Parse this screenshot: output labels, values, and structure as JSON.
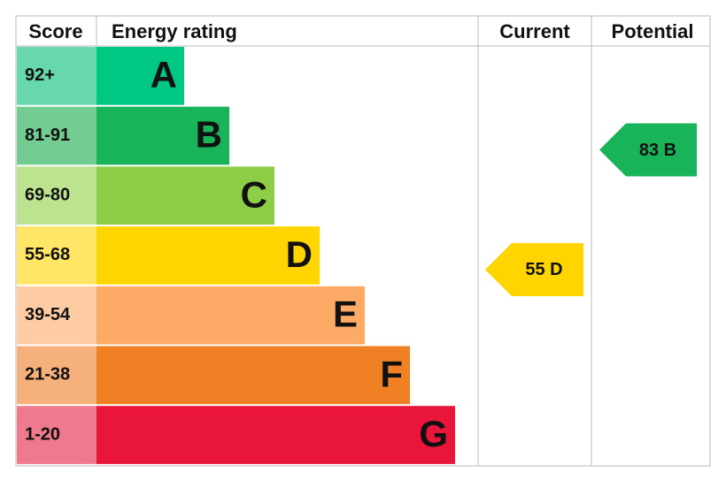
{
  "header": {
    "score": "Score",
    "energy_rating": "Energy rating",
    "current": "Current",
    "potential": "Potential"
  },
  "rows": [
    {
      "score": "92+",
      "letter": "A",
      "color": "#00c781",
      "tint": "#66d8ab"
    },
    {
      "score": "81-91",
      "letter": "B",
      "color": "#19b459",
      "tint": "#73cd93"
    },
    {
      "score": "69-80",
      "letter": "C",
      "color": "#8dce46",
      "tint": "#bde390"
    },
    {
      "score": "55-68",
      "letter": "D",
      "color": "#ffd500",
      "tint": "#ffe666"
    },
    {
      "score": "39-54",
      "letter": "E",
      "color": "#fcaa65",
      "tint": "#fdccA3"
    },
    {
      "score": "21-38",
      "letter": "F",
      "color": "#ef8023",
      "tint": "#f5b07b"
    },
    {
      "score": "1-20",
      "letter": "G",
      "color": "#e9153b",
      "tint": "#f07a8d"
    }
  ],
  "current": {
    "label": "55 D",
    "row": 3
  },
  "potential": {
    "label": "83 B",
    "row": 1
  }
}
